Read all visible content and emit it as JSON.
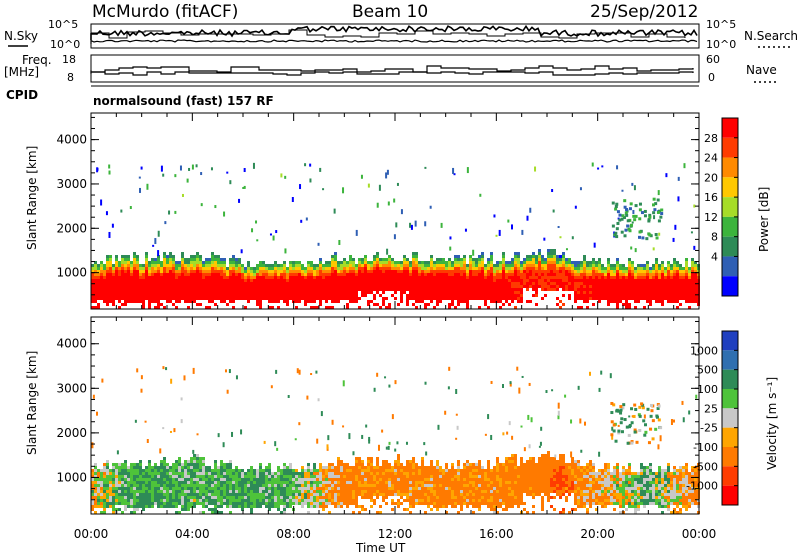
{
  "header": {
    "station": "McMurdo (fitACF)",
    "beam": "Beam 10",
    "date": "25/Sep/2012"
  },
  "strip_noise": {
    "left_label": "N.Sky",
    "right_label": "N.Search",
    "left_ticks": [
      "10^5",
      "10^0"
    ],
    "right_ticks": [
      "10^5",
      "10^0"
    ]
  },
  "strip_freq": {
    "left_label_1": "Freq.",
    "left_label_2": "[MHz]",
    "right_label": "Nave",
    "left_ticks": [
      "18",
      "8"
    ],
    "right_ticks": [
      "60",
      "0"
    ]
  },
  "strip_cpid": {
    "label": "CPID",
    "text": "normalsound (fast) 157 RF"
  },
  "power_panel": {
    "ylabel": "Slant Range [km]",
    "yticks": [
      "4000",
      "3000",
      "2000",
      "1000"
    ],
    "colorbar_label": "Power [dB]",
    "colorbar_ticks": [
      "28",
      "24",
      "20",
      "16",
      "12",
      "8",
      "4"
    ],
    "colorbar_colors": [
      "#ff0000",
      "#ff3b00",
      "#ff8a00",
      "#ffc800",
      "#a6dc28",
      "#3cb43c",
      "#2e8b57",
      "#2f5fb4",
      "#0000ff"
    ]
  },
  "velocity_panel": {
    "ylabel": "Slant Range [km]",
    "yticks": [
      "4000",
      "3000",
      "2000",
      "1000"
    ],
    "colorbar_label": "Velocity [m s⁻¹]",
    "colorbar_ticks": [
      "1000",
      "500",
      "100",
      "25",
      "-25",
      "-100",
      "-500",
      "-1000"
    ],
    "colorbar_colors": [
      "#1f3fbf",
      "#2f6fb0",
      "#2e8b57",
      "#4ec33a",
      "#c8c8c8",
      "#ffa500",
      "#ff7a00",
      "#ff3c00",
      "#ff0000"
    ]
  },
  "x_axis": {
    "label": "Time UT",
    "ticks": [
      "00:00",
      "04:00",
      "08:00",
      "12:00",
      "16:00",
      "20:00",
      "00:00"
    ]
  },
  "chart_data": {
    "type": "heatmap",
    "title": "McMurdo (fitACF) Beam 10 25/Sep/2012",
    "xlabel": "Time UT",
    "ylabel": "Slant Range [km]",
    "x_range": [
      "00:00",
      "24:00"
    ],
    "y_range_km": [
      180,
      4600
    ],
    "panels": [
      {
        "name": "Power",
        "units": "dB",
        "scale": [
          0,
          32
        ],
        "range_band_hours": [
          0,
          2,
          4,
          6,
          8,
          10,
          12,
          14,
          16,
          18,
          20,
          22,
          24
        ],
        "band_top_km": [
          1250,
          1300,
          1350,
          1200,
          1200,
          1300,
          1350,
          1250,
          1300,
          1450,
          1200,
          1200,
          1200
        ],
        "core_power_db": [
          28,
          28,
          26,
          26,
          28,
          28,
          28,
          28,
          26,
          24,
          26,
          28,
          28
        ]
      },
      {
        "name": "Velocity",
        "units": "m s-1",
        "scale": [
          -1000,
          1000
        ],
        "range_band_hours": [
          0,
          2,
          4,
          6,
          8,
          10,
          12,
          14,
          16,
          18,
          20,
          22,
          24
        ],
        "band_top_km": [
          1250,
          1300,
          1350,
          1200,
          1200,
          1300,
          1350,
          1250,
          1300,
          1450,
          1200,
          1200,
          1200
        ],
        "dominant_velocity": [
          -50,
          100,
          50,
          100,
          50,
          -100,
          -100,
          -100,
          -100,
          -150,
          -50,
          50,
          -100
        ]
      }
    ]
  }
}
